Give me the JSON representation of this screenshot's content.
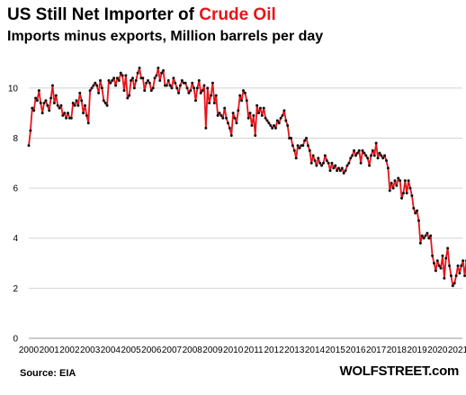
{
  "title": {
    "part1": "US Still Net Importer of ",
    "part2": "Crude Oil"
  },
  "subtitle": "Imports minus exports, Million barrels per day",
  "source": "Source: EIA",
  "brand": "WOLFSTREET.com",
  "chart_data": {
    "type": "line",
    "title": "US Still Net Importer of Crude Oil",
    "subtitle": "Imports minus exports, Million barrels per day",
    "xlabel": "",
    "ylabel": "",
    "ylim": [
      0,
      11
    ],
    "yticks": [
      0,
      2,
      4,
      6,
      8,
      10
    ],
    "xticks": [
      "2000",
      "2001",
      "2002",
      "2003",
      "2004",
      "2005",
      "2006",
      "2007",
      "2008",
      "2009",
      "2010",
      "2011",
      "2012",
      "2013",
      "2014",
      "2015",
      "2016",
      "2017",
      "2018",
      "2019",
      "2020",
      "2021"
    ],
    "grid": "horizontal",
    "series": [
      {
        "color": "#e8141a",
        "marker_color": "#111111",
        "x": [
          "2000-01",
          "2000-02",
          "2000-03",
          "2000-04",
          "2000-05",
          "2000-06",
          "2000-07",
          "2000-08",
          "2000-09",
          "2000-10",
          "2000-11",
          "2000-12",
          "2001-01",
          "2001-02",
          "2001-03",
          "2001-04",
          "2001-05",
          "2001-06",
          "2001-07",
          "2001-08",
          "2001-09",
          "2001-10",
          "2001-11",
          "2001-12",
          "2002-01",
          "2002-02",
          "2002-03",
          "2002-04",
          "2002-05",
          "2002-06",
          "2002-07",
          "2002-08",
          "2002-09",
          "2002-10",
          "2002-11",
          "2002-12",
          "2003-01",
          "2003-02",
          "2003-03",
          "2003-04",
          "2003-05",
          "2003-06",
          "2003-07",
          "2003-08",
          "2003-09",
          "2003-10",
          "2003-11",
          "2003-12",
          "2004-01",
          "2004-02",
          "2004-03",
          "2004-04",
          "2004-05",
          "2004-06",
          "2004-07",
          "2004-08",
          "2004-09",
          "2004-10",
          "2004-11",
          "2004-12",
          "2005-01",
          "2005-02",
          "2005-03",
          "2005-04",
          "2005-05",
          "2005-06",
          "2005-07",
          "2005-08",
          "2005-09",
          "2005-10",
          "2005-11",
          "2005-12",
          "2006-01",
          "2006-02",
          "2006-03",
          "2006-04",
          "2006-05",
          "2006-06",
          "2006-07",
          "2006-08",
          "2006-09",
          "2006-10",
          "2006-11",
          "2006-12",
          "2007-01",
          "2007-02",
          "2007-03",
          "2007-04",
          "2007-05",
          "2007-06",
          "2007-07",
          "2007-08",
          "2007-09",
          "2007-10",
          "2007-11",
          "2007-12",
          "2008-01",
          "2008-02",
          "2008-03",
          "2008-04",
          "2008-05",
          "2008-06",
          "2008-07",
          "2008-08",
          "2008-09",
          "2008-10",
          "2008-11",
          "2008-12",
          "2009-01",
          "2009-02",
          "2009-03",
          "2009-04",
          "2009-05",
          "2009-06",
          "2009-07",
          "2009-08",
          "2009-09",
          "2009-10",
          "2009-11",
          "2009-12",
          "2010-01",
          "2010-02",
          "2010-03",
          "2010-04",
          "2010-05",
          "2010-06",
          "2010-07",
          "2010-08",
          "2010-09",
          "2010-10",
          "2010-11",
          "2010-12",
          "2011-01",
          "2011-02",
          "2011-03",
          "2011-04",
          "2011-05",
          "2011-06",
          "2011-07",
          "2011-08",
          "2011-09",
          "2011-10",
          "2011-11",
          "2011-12",
          "2012-01",
          "2012-02",
          "2012-03",
          "2012-04",
          "2012-05",
          "2012-06",
          "2012-07",
          "2012-08",
          "2012-09",
          "2012-10",
          "2012-11",
          "2012-12",
          "2013-01",
          "2013-02",
          "2013-03",
          "2013-04",
          "2013-05",
          "2013-06",
          "2013-07",
          "2013-08",
          "2013-09",
          "2013-10",
          "2013-11",
          "2013-12",
          "2014-01",
          "2014-02",
          "2014-03",
          "2014-04",
          "2014-05",
          "2014-06",
          "2014-07",
          "2014-08",
          "2014-09",
          "2014-10",
          "2014-11",
          "2014-12",
          "2015-01",
          "2015-02",
          "2015-03",
          "2015-04",
          "2015-05",
          "2015-06",
          "2015-07",
          "2015-08",
          "2015-09",
          "2015-10",
          "2015-11",
          "2015-12",
          "2016-01",
          "2016-02",
          "2016-03",
          "2016-04",
          "2016-05",
          "2016-06",
          "2016-07",
          "2016-08",
          "2016-09",
          "2016-10",
          "2016-11",
          "2016-12",
          "2017-01",
          "2017-02",
          "2017-03",
          "2017-04",
          "2017-05",
          "2017-06",
          "2017-07",
          "2017-08",
          "2017-09",
          "2017-10",
          "2017-11",
          "2017-12",
          "2018-01",
          "2018-02",
          "2018-03",
          "2018-04",
          "2018-05",
          "2018-06",
          "2018-07",
          "2018-08",
          "2018-09",
          "2018-10",
          "2018-11",
          "2018-12",
          "2019-01",
          "2019-02",
          "2019-03",
          "2019-04",
          "2019-05",
          "2019-06",
          "2019-07",
          "2019-08",
          "2019-09",
          "2019-10",
          "2019-11",
          "2019-12",
          "2020-01",
          "2020-02",
          "2020-03",
          "2020-04",
          "2020-05",
          "2020-06",
          "2020-07",
          "2020-08",
          "2020-09",
          "2020-10",
          "2020-11",
          "2020-12",
          "2021-01",
          "2021-02",
          "2021-03",
          "2021-04",
          "2021-05",
          "2021-06"
        ],
        "values": [
          7.7,
          8.3,
          9.2,
          9.1,
          9.6,
          9.5,
          9.9,
          9.4,
          9.0,
          9.4,
          9.5,
          9.3,
          9.1,
          9.6,
          10.1,
          9.4,
          9.7,
          9.3,
          9.2,
          9.3,
          8.9,
          9.0,
          8.8,
          9.0,
          8.8,
          8.8,
          9.4,
          9.3,
          9.5,
          9.3,
          9.8,
          9.5,
          9.0,
          9.3,
          8.9,
          8.6,
          9.9,
          10.0,
          10.1,
          10.2,
          10.1,
          9.8,
          10.3,
          10.0,
          9.5,
          9.4,
          9.3,
          10.3,
          10.2,
          10.3,
          10.4,
          10.1,
          10.4,
          10.3,
          10.6,
          10.5,
          9.9,
          10.5,
          9.6,
          9.7,
          10.3,
          10.4,
          10.0,
          10.3,
          10.6,
          10.8,
          10.4,
          10.4,
          9.9,
          10.2,
          10.3,
          10.2,
          9.9,
          10.0,
          10.4,
          10.5,
          10.8,
          10.3,
          10.6,
          10.7,
          10.1,
          10.1,
          10.3,
          10.1,
          10.0,
          10.4,
          10.2,
          10.0,
          9.8,
          10.1,
          10.3,
          10.2,
          10.2,
          10.0,
          9.8,
          9.9,
          10.2,
          10.0,
          9.5,
          10.0,
          10.3,
          9.8,
          9.9,
          10.1,
          8.4,
          10.0,
          9.4,
          9.7,
          10.2,
          9.4,
          9.7,
          8.9,
          9.0,
          8.9,
          8.8,
          9.2,
          8.8,
          8.6,
          8.4,
          8.1,
          9.0,
          8.8,
          8.6,
          9.1,
          9.7,
          9.5,
          9.9,
          9.8,
          9.5,
          8.8,
          9.0,
          8.5,
          8.9,
          8.1,
          9.3,
          9.0,
          9.2,
          8.9,
          9.2,
          8.8,
          8.7,
          8.6,
          8.5,
          8.4,
          8.5,
          8.4,
          8.7,
          8.6,
          8.8,
          8.9,
          9.1,
          8.7,
          8.5,
          8.0,
          8.0,
          7.7,
          7.5,
          7.2,
          7.7,
          7.6,
          7.7,
          7.7,
          7.9,
          8.0,
          7.7,
          7.5,
          7.0,
          7.3,
          7.1,
          6.9,
          7.2,
          7.0,
          6.9,
          7.0,
          7.3,
          7.1,
          7.0,
          6.7,
          7.0,
          6.8,
          6.9,
          6.7,
          6.8,
          6.7,
          6.8,
          6.6,
          6.7,
          6.9,
          7.0,
          7.2,
          7.3,
          7.5,
          7.3,
          7.4,
          7.5,
          7.0,
          7.5,
          7.4,
          7.3,
          7.2,
          6.9,
          7.3,
          7.5,
          7.3,
          7.8,
          7.2,
          7.4,
          7.3,
          7.2,
          7.3,
          7.1,
          6.8,
          5.9,
          6.2,
          6.0,
          6.3,
          6.1,
          6.4,
          6.3,
          5.6,
          5.8,
          6.3,
          5.8,
          6.3,
          6.0,
          5.7,
          5.2,
          5.0,
          5.1,
          4.7,
          3.8,
          4.1,
          4.0,
          4.1,
          4.2,
          4.0,
          4.1,
          3.3,
          3.0,
          2.7,
          3.1,
          2.9,
          2.8,
          3.3,
          2.4,
          3.2,
          3.6,
          2.9,
          2.5,
          2.1,
          2.2,
          2.5,
          2.9,
          2.6,
          2.9,
          3.1,
          2.5,
          3.1
        ]
      }
    ]
  }
}
